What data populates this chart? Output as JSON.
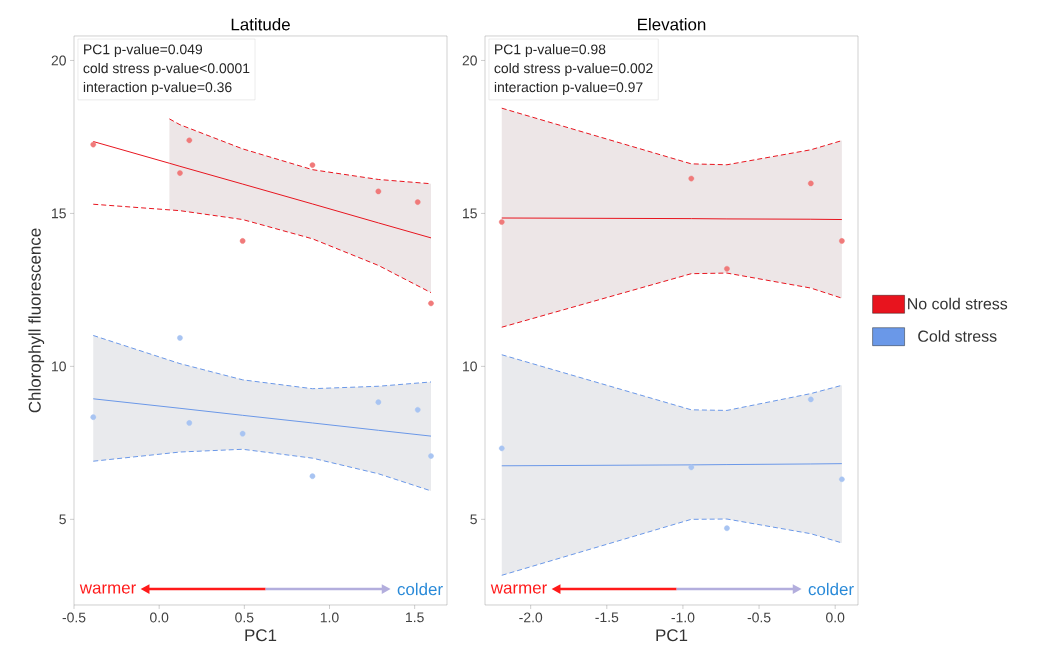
{
  "chart_data": [
    {
      "type": "scatter",
      "title": "Latitude",
      "xlabel": "PC1",
      "ylabel": "Chlorophyll fluorescence",
      "xlim": [
        -0.5,
        1.69
      ],
      "ylim": [
        2.2,
        20.8
      ],
      "xticks": [
        {
          "value": -0.5,
          "label": "-0.5"
        },
        {
          "value": 0,
          "label": "0.0"
        },
        {
          "value": 0.5,
          "label": "0.5"
        },
        {
          "value": 1,
          "label": "1.0"
        },
        {
          "value": 1.5,
          "label": "1.5"
        }
      ],
      "yticks": [
        5,
        10,
        15,
        20
      ],
      "annotations": [
        "PC1 p-value=0.049",
        "cold stress p-value<0.0001",
        "interaction p-value=0.36",
        "warmer",
        "colder"
      ],
      "series": [
        {
          "type": "line",
          "marker": "none",
          "color": "#e8141e",
          "x": [
            -0.387,
            0.06,
            0.122,
            0.49,
            0.9,
            1.287,
            1.596
          ],
          "values": [
            17.35,
            16.64,
            16.54,
            15.96,
            15.31,
            14.69,
            14.2
          ],
          "lower": [
            null,
            15.12,
            15.09,
            14.8,
            14.17,
            13.3,
            12.41
          ],
          "upper": [
            null,
            18.09,
            17.9,
            17.11,
            16.43,
            16.11,
            15.97
          ]
        },
        {
          "type": "line",
          "marker": "none",
          "color": "#6a98e8",
          "x": [
            -0.387,
            0.122,
            0.49,
            0.9,
            1.287,
            1.596
          ],
          "values": [
            8.94,
            8.63,
            8.4,
            8.15,
            7.91,
            7.72
          ],
          "lower": [
            6.9,
            7.2,
            7.29,
            7.0,
            6.49,
            5.93
          ],
          "upper": [
            11.01,
            10.09,
            9.56,
            9.27,
            9.35,
            9.49
          ]
        },
        {
          "type": "line",
          "marker": "none",
          "line_style": "dashed",
          "color": "#e8141e",
          "x": [
            0.06,
            0.122,
            0.49,
            0.9,
            1.287,
            1.596
          ],
          "values": [
            18.09,
            17.9,
            17.11,
            16.43,
            16.11,
            15.97
          ]
        },
        {
          "type": "line",
          "marker": "none",
          "line_style": "dashed",
          "color": "#e8141e",
          "x": [
            -0.387,
            0.122,
            0.49,
            0.9,
            1.287,
            1.596
          ],
          "values": [
            15.3,
            15.09,
            14.8,
            14.17,
            13.3,
            12.41
          ]
        },
        {
          "type": "line",
          "marker": "none",
          "line_style": "dashed",
          "color": "#6a98e8",
          "x": [
            -0.387,
            0.122,
            0.49,
            0.9,
            1.287,
            1.596
          ],
          "values": [
            11.01,
            10.09,
            9.56,
            9.27,
            9.35,
            9.49
          ]
        },
        {
          "type": "line",
          "marker": "none",
          "line_style": "dashed",
          "color": "#6a98e8",
          "x": [
            -0.387,
            0.122,
            0.49,
            0.9,
            1.287,
            1.596
          ],
          "values": [
            6.9,
            7.2,
            7.29,
            7.0,
            6.49,
            5.93
          ]
        },
        {
          "marker": "circle",
          "color": "#f07a7a",
          "x": [
            -0.387,
            0.122,
            0.177,
            0.49,
            0.9,
            1.287,
            1.518,
            1.596
          ],
          "values": [
            17.25,
            16.32,
            17.39,
            14.1,
            16.58,
            15.72,
            15.37,
            12.06
          ]
        },
        {
          "marker": "circle",
          "color": "#a8c4f2",
          "x": [
            -0.387,
            0.122,
            0.177,
            0.49,
            0.9,
            1.287,
            1.518,
            1.596
          ],
          "values": [
            8.34,
            10.93,
            8.15,
            7.8,
            6.41,
            8.83,
            8.58,
            7.07
          ]
        }
      ]
    },
    {
      "type": "scatter",
      "title": "Elevation",
      "xlabel": "PC1",
      "legend": "right",
      "xlim": [
        -2.3,
        0.15
      ],
      "ylim": [
        2.2,
        20.8
      ],
      "xticks": [
        {
          "value": -2,
          "label": "-2.0"
        },
        {
          "value": -1.5,
          "label": "-1.5"
        },
        {
          "value": -1,
          "label": "-1.0"
        },
        {
          "value": -0.5,
          "label": "-0.5"
        },
        {
          "value": 0,
          "label": "0.0"
        }
      ],
      "yticks": [
        5,
        10,
        15,
        20
      ],
      "annotations": [
        "PC1 p-value=0.98",
        "cold stress p-value=0.002",
        "interaction p-value=0.97",
        "warmer",
        "colder"
      ],
      "series": [
        {
          "type": "line",
          "marker": "none",
          "name": "No cold stress",
          "color": "#e8141e",
          "x": [
            -2.19,
            -0.945,
            -0.711,
            -0.16,
            0.044
          ],
          "values": [
            14.85,
            14.83,
            14.82,
            14.81,
            14.8
          ],
          "lower": [
            11.28,
            13.03,
            13.05,
            12.56,
            12.23
          ],
          "upper": [
            18.44,
            16.62,
            16.59,
            17.08,
            17.38
          ]
        },
        {
          "type": "line",
          "marker": "none",
          "name": "Cold stress",
          "color": "#6a98e8",
          "x": [
            -2.19,
            -0.945,
            -0.711,
            -0.16,
            0.044
          ],
          "values": [
            6.75,
            6.78,
            6.79,
            6.81,
            6.82
          ],
          "lower": [
            3.17,
            5.0,
            5.01,
            4.53,
            4.23
          ],
          "upper": [
            10.38,
            8.58,
            8.56,
            9.11,
            9.38
          ]
        },
        {
          "type": "line",
          "marker": "none",
          "line_style": "dashed",
          "color": "#e8141e",
          "x": [
            -2.19,
            -0.945,
            -0.711,
            -0.16,
            0.044
          ],
          "values": [
            18.44,
            16.62,
            16.59,
            17.08,
            17.38
          ]
        },
        {
          "type": "line",
          "marker": "none",
          "line_style": "dashed",
          "color": "#e8141e",
          "x": [
            -2.19,
            -0.945,
            -0.711,
            -0.16,
            0.044
          ],
          "values": [
            11.28,
            13.03,
            13.05,
            12.56,
            12.23
          ]
        },
        {
          "type": "line",
          "marker": "none",
          "line_style": "dashed",
          "color": "#6a98e8",
          "x": [
            -2.19,
            -0.945,
            -0.711,
            -0.16,
            0.044
          ],
          "values": [
            10.38,
            8.58,
            8.56,
            9.11,
            9.38
          ]
        },
        {
          "type": "line",
          "marker": "none",
          "line_style": "dashed",
          "color": "#6a98e8",
          "x": [
            -2.19,
            -0.945,
            -0.711,
            -0.16,
            0.044
          ],
          "values": [
            3.17,
            5.0,
            5.01,
            4.53,
            4.23
          ]
        },
        {
          "marker": "circle",
          "color": "#f07a7a",
          "x": [
            -2.19,
            -0.945,
            -0.711,
            -0.16,
            0.044
          ],
          "values": [
            14.72,
            16.14,
            13.19,
            15.98,
            14.1
          ]
        },
        {
          "marker": "circle",
          "color": "#a8c4f2",
          "x": [
            -2.19,
            -0.945,
            -0.711,
            -0.16,
            0.044
          ],
          "values": [
            7.32,
            6.7,
            4.71,
            8.92,
            6.31
          ]
        }
      ]
    }
  ]
}
